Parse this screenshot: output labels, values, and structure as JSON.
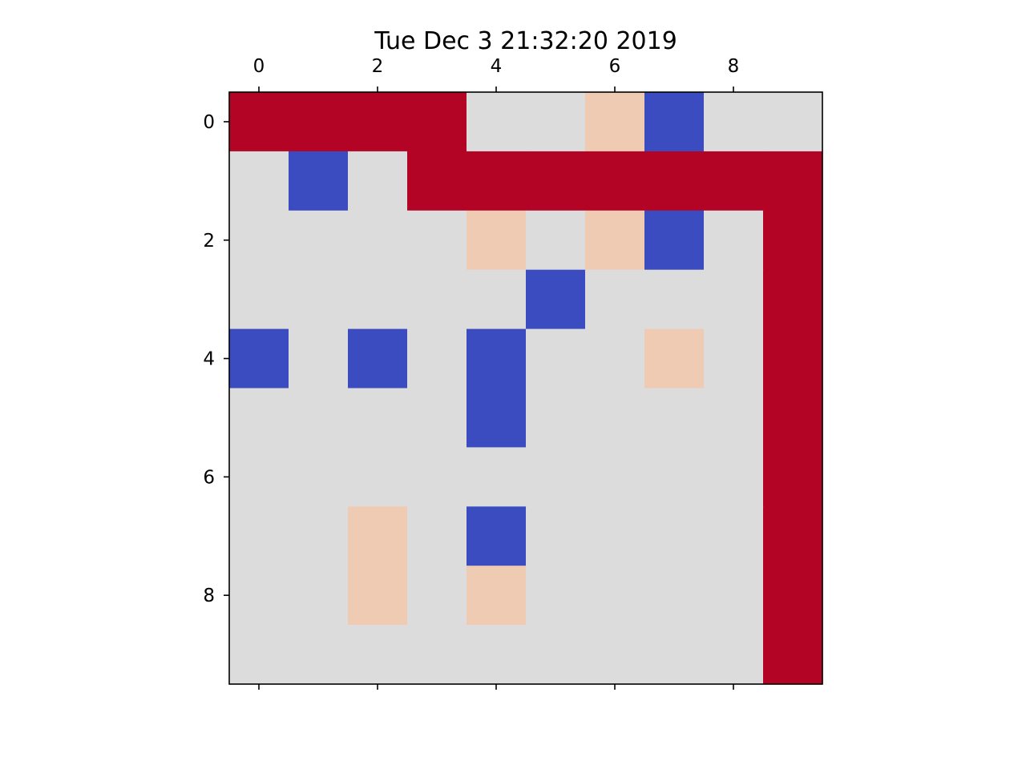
{
  "chart_data": {
    "type": "heatmap",
    "title": "Tue Dec  3 21:32:20 2019",
    "xlabel": "",
    "ylabel": "",
    "x_ticks_top": [
      "0",
      "2",
      "4",
      "6",
      "8"
    ],
    "y_ticks": [
      "0",
      "2",
      "4",
      "6",
      "8"
    ],
    "colormap": "coolwarm",
    "colors": {
      "-1": "#3b4cc0",
      "0": "#dddcdc",
      "1": "#f0cbb4",
      "2": "#b40426"
    },
    "grid": false,
    "rows": 10,
    "cols": 10,
    "values": [
      [
        2,
        2,
        2,
        2,
        0,
        0,
        1,
        -1,
        0,
        0
      ],
      [
        0,
        -1,
        0,
        2,
        2,
        2,
        2,
        2,
        2,
        2
      ],
      [
        0,
        0,
        0,
        0,
        1,
        0,
        1,
        -1,
        0,
        2
      ],
      [
        0,
        0,
        0,
        0,
        0,
        -1,
        0,
        0,
        0,
        2
      ],
      [
        -1,
        0,
        -1,
        0,
        -1,
        0,
        0,
        1,
        0,
        2
      ],
      [
        0,
        0,
        0,
        0,
        -1,
        0,
        0,
        0,
        0,
        2
      ],
      [
        0,
        0,
        0,
        0,
        0,
        0,
        0,
        0,
        0,
        2
      ],
      [
        0,
        0,
        1,
        0,
        -1,
        0,
        0,
        0,
        0,
        2
      ],
      [
        0,
        0,
        1,
        0,
        1,
        0,
        0,
        0,
        0,
        2
      ],
      [
        0,
        0,
        0,
        0,
        0,
        0,
        0,
        0,
        0,
        2
      ]
    ]
  }
}
